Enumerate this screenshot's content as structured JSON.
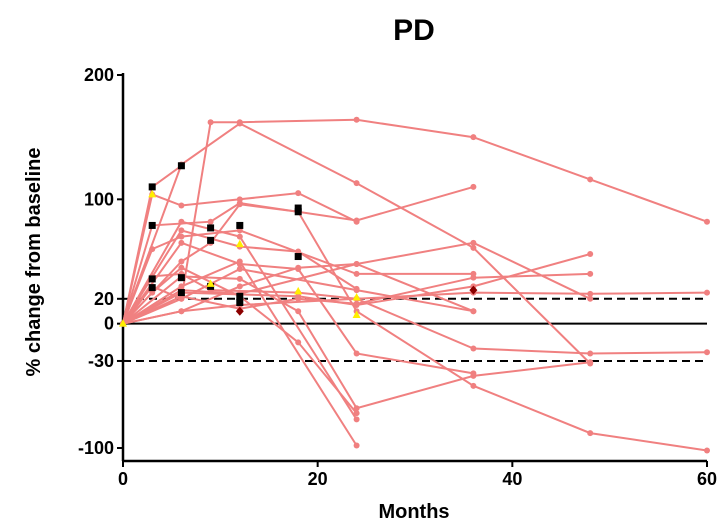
{
  "chart_data": {
    "type": "line",
    "title": "PD",
    "xlabel": "Months",
    "ylabel": "% change from baseline",
    "xlim": [
      0,
      60
    ],
    "ylim": [
      -105,
      200
    ],
    "x_ticks": [
      0,
      20,
      40,
      60
    ],
    "y_ticks": [
      200,
      100,
      20,
      0,
      -30,
      -100
    ],
    "reference_lines": [
      {
        "y": 0,
        "style": "solid"
      },
      {
        "y": 20,
        "style": "dashed"
      },
      {
        "y": -30,
        "style": "dashed"
      }
    ],
    "grid": false,
    "legend": "none",
    "colors": {
      "line": "#f08080",
      "black_marker": "#000000",
      "yellow_marker": "#ffee00",
      "dark_marker": "#8b0000"
    },
    "series": [
      {
        "x": [
          0,
          3,
          6,
          9,
          12,
          24,
          36,
          48,
          60
        ],
        "y": [
          0,
          30,
          20,
          162,
          162,
          164,
          150,
          116,
          82
        ]
      },
      {
        "x": [
          0,
          6,
          12,
          24,
          36,
          48
        ],
        "y": [
          0,
          128,
          161,
          113,
          61,
          -32
        ]
      },
      {
        "x": [
          0,
          3,
          6
        ],
        "y": [
          0,
          110,
          127
        ]
      },
      {
        "x": [
          0,
          3,
          6,
          12,
          18,
          24
        ],
        "y": [
          0,
          104,
          95,
          100,
          105,
          82
        ]
      },
      {
        "x": [
          0,
          3,
          9,
          12,
          24,
          36
        ],
        "y": [
          0,
          79,
          82,
          97,
          83,
          110
        ]
      },
      {
        "x": [
          0,
          6,
          12,
          18,
          24
        ],
        "y": [
          0,
          75,
          62,
          58,
          28
        ]
      },
      {
        "x": [
          0,
          6,
          9,
          12,
          18,
          24,
          36,
          48,
          60
        ],
        "y": [
          0,
          50,
          65,
          96,
          90,
          10,
          -50,
          -88,
          -102
        ]
      },
      {
        "x": [
          0,
          6,
          12,
          18,
          24,
          36
        ],
        "y": [
          0,
          65,
          48,
          44,
          -24,
          -40
        ]
      },
      {
        "x": [
          0,
          6,
          12,
          18,
          24,
          36,
          48
        ],
        "y": [
          0,
          38,
          36,
          10,
          -68,
          -42,
          -31
        ]
      },
      {
        "x": [
          0,
          6,
          12,
          24,
          36,
          48
        ],
        "y": [
          0,
          27,
          24,
          48,
          65,
          20
        ]
      },
      {
        "x": [
          0,
          6,
          12,
          24
        ],
        "y": [
          0,
          30,
          50,
          -98
        ]
      },
      {
        "x": [
          0,
          3,
          6,
          12,
          18,
          24
        ],
        "y": [
          0,
          25,
          45,
          22,
          -15,
          -72
        ]
      },
      {
        "x": [
          0,
          3,
          6,
          9,
          18,
          24,
          36,
          48,
          60
        ],
        "y": [
          0,
          38,
          40,
          27,
          25,
          20,
          25,
          24,
          25
        ]
      },
      {
        "x": [
          0,
          6,
          12,
          24,
          36,
          48,
          60
        ],
        "y": [
          0,
          10,
          15,
          20,
          -20,
          -24,
          -23
        ]
      },
      {
        "x": [
          0,
          6,
          12,
          24,
          36
        ],
        "y": [
          0,
          20,
          44,
          27,
          10
        ]
      },
      {
        "x": [
          0,
          6,
          12,
          18,
          24,
          36
        ],
        "y": [
          0,
          10,
          30,
          45,
          48,
          10
        ]
      },
      {
        "x": [
          0,
          6,
          18,
          24,
          36,
          48
        ],
        "y": [
          0,
          25,
          22,
          15,
          30,
          56
        ]
      },
      {
        "x": [
          0,
          6,
          12,
          18,
          24,
          36,
          48
        ],
        "y": [
          0,
          22,
          12,
          20,
          16,
          37,
          40
        ]
      },
      {
        "x": [
          0,
          3,
          6,
          12,
          24,
          36
        ],
        "y": [
          0,
          60,
          70,
          75,
          40,
          40
        ]
      },
      {
        "x": [
          0,
          6,
          12,
          24
        ],
        "y": [
          0,
          82,
          70,
          -77
        ]
      }
    ],
    "markers": [
      {
        "x": 3,
        "y": 110,
        "type": "black"
      },
      {
        "x": 6,
        "y": 127,
        "type": "black"
      },
      {
        "x": 3,
        "y": 79,
        "type": "black"
      },
      {
        "x": 3,
        "y": 36,
        "type": "black"
      },
      {
        "x": 3,
        "y": 29,
        "type": "black"
      },
      {
        "x": 6,
        "y": 37,
        "type": "black"
      },
      {
        "x": 6,
        "y": 25,
        "type": "black"
      },
      {
        "x": 9,
        "y": 77,
        "type": "black"
      },
      {
        "x": 9,
        "y": 67,
        "type": "black"
      },
      {
        "x": 9,
        "y": 30,
        "type": "black"
      },
      {
        "x": 12,
        "y": 79,
        "type": "black"
      },
      {
        "x": 12,
        "y": 22,
        "type": "black"
      },
      {
        "x": 12,
        "y": 17,
        "type": "black"
      },
      {
        "x": 18,
        "y": 93,
        "type": "black"
      },
      {
        "x": 18,
        "y": 90,
        "type": "black"
      },
      {
        "x": 18,
        "y": 54,
        "type": "black"
      },
      {
        "x": 3,
        "y": 104,
        "type": "yellow"
      },
      {
        "x": 12,
        "y": 64,
        "type": "yellow"
      },
      {
        "x": 9,
        "y": 32,
        "type": "yellow"
      },
      {
        "x": 18,
        "y": 26,
        "type": "yellow"
      },
      {
        "x": 24,
        "y": 21,
        "type": "yellow"
      },
      {
        "x": 24,
        "y": 7,
        "type": "yellow"
      },
      {
        "x": 0,
        "y": 0,
        "type": "yellow"
      },
      {
        "x": 12,
        "y": 10,
        "type": "dark"
      },
      {
        "x": 36,
        "y": 27,
        "type": "dark"
      }
    ]
  }
}
